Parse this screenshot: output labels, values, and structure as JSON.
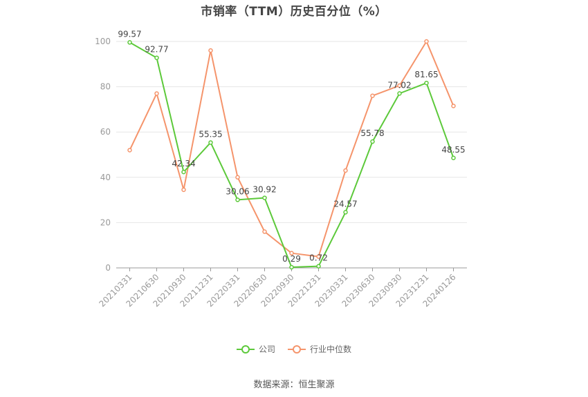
{
  "chart_data": {
    "type": "line",
    "title": "市销率（TTM）历史百分位（%）",
    "categories": [
      "20210331",
      "20210630",
      "20210930",
      "20211231",
      "20220331",
      "20220630",
      "20220930",
      "20221231",
      "20230331",
      "20230630",
      "20230930",
      "20231231",
      "20240126"
    ],
    "series": [
      {
        "name": "公司",
        "color": "#5cc93a",
        "values": [
          99.57,
          92.77,
          42.34,
          55.35,
          30.06,
          30.92,
          0.29,
          0.72,
          24.57,
          55.78,
          77.02,
          81.65,
          48.55
        ],
        "labeled": true
      },
      {
        "name": "行业中位数",
        "color": "#f5946b",
        "values": [
          52,
          77,
          34.5,
          96,
          40,
          16,
          6.5,
          5,
          43,
          76,
          80.5,
          100,
          71.5
        ],
        "labeled": false
      }
    ],
    "ylim": [
      0,
      100
    ],
    "yticks": [
      0,
      20,
      40,
      60,
      80,
      100
    ],
    "xlabel": "",
    "ylabel": "",
    "grid": true,
    "legend_position": "bottom"
  },
  "footer": {
    "source": "数据来源：恒生聚源"
  }
}
